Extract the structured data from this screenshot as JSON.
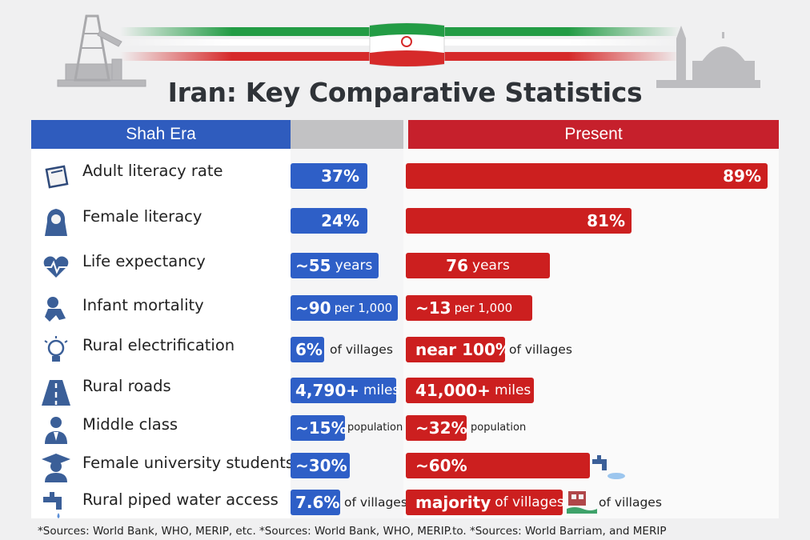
{
  "title": "Iran: Key Comparative Statistics",
  "headers": {
    "left": "Shah Era",
    "right": "Present"
  },
  "colors": {
    "shah_blue": "#2e5fc7",
    "present_red": "#cc1f1f",
    "header_blue": "#2f5cbe",
    "header_red": "#c6202c"
  },
  "rows": [
    {
      "label": "Adult literacy rate",
      "icon": "book-icon",
      "shah": {
        "main": "37%",
        "sub": "",
        "after": ""
      },
      "present": {
        "main": "89%",
        "sub": "",
        "after": ""
      }
    },
    {
      "label": "Female literacy",
      "icon": "veiled-woman-icon",
      "shah": {
        "main": "24%",
        "sub": "",
        "after": ""
      },
      "present": {
        "main": "81%",
        "sub": "",
        "after": ""
      }
    },
    {
      "label": "Life expectancy",
      "icon": "heart-pulse-icon",
      "shah": {
        "main": "~55",
        "sub": "years",
        "after": ""
      },
      "present": {
        "main": "76",
        "sub": "years",
        "after": ""
      }
    },
    {
      "label": "Infant mortality",
      "icon": "baby-icon",
      "shah": {
        "main": "~90",
        "sub": "per 1,000",
        "after": ""
      },
      "present": {
        "main": "~13",
        "sub": "per 1,000",
        "after": ""
      }
    },
    {
      "label": "Rural electrification",
      "icon": "lightbulb-icon",
      "shah": {
        "main": "6%",
        "sub": "",
        "after": "of villages"
      },
      "present": {
        "main": "near 100%",
        "sub": "",
        "after": "of villages"
      }
    },
    {
      "label": "Rural roads",
      "icon": "road-icon",
      "shah": {
        "main": "4,790+",
        "sub": "miles",
        "after": ""
      },
      "present": {
        "main": "41,000+",
        "sub": "miles",
        "after": ""
      }
    },
    {
      "label": "Middle class",
      "icon": "person-suit-icon",
      "shah": {
        "main": "~15%",
        "sub": "",
        "after": "population"
      },
      "present": {
        "main": "~32%",
        "sub": "",
        "after": "population"
      }
    },
    {
      "label": "Female university students",
      "icon": "graduate-icon",
      "shah": {
        "main": "~30%",
        "sub": "",
        "after": ""
      },
      "present": {
        "main": "~60%",
        "sub": "",
        "after": ""
      }
    },
    {
      "label": "Rural piped water access",
      "icon": "water-tap-icon",
      "shah": {
        "main": "7.6%",
        "sub": "",
        "after": "of villages"
      },
      "present": {
        "main": "majority",
        "sub": "of villages",
        "after": "of villages"
      }
    }
  ],
  "footer": "*Sources: World Bank, WHO, MERIP, etc.  *Sources: World Bank, WHO, MERIP.to. *Sources: World Barriam, and MERIP",
  "chart_data": {
    "type": "bar",
    "title": "Iran: Key Comparative Statistics",
    "categories": [
      "Adult literacy rate",
      "Female literacy",
      "Life expectancy",
      "Infant mortality",
      "Rural electrification",
      "Rural roads",
      "Middle class",
      "Female university students",
      "Rural piped water access"
    ],
    "series": [
      {
        "name": "Shah Era",
        "values": [
          "37%",
          "24%",
          "~55 years",
          "~90 per 1,000",
          "6% of villages",
          "4,790+ miles",
          "~15% population",
          "~30%",
          "7.6% of villages"
        ]
      },
      {
        "name": "Present",
        "values": [
          "89%",
          "81%",
          "76 years",
          "~13 per 1,000",
          "near 100% of villages",
          "41,000+ miles",
          "~32% population",
          "~60%",
          "majority of villages"
        ]
      }
    ]
  }
}
